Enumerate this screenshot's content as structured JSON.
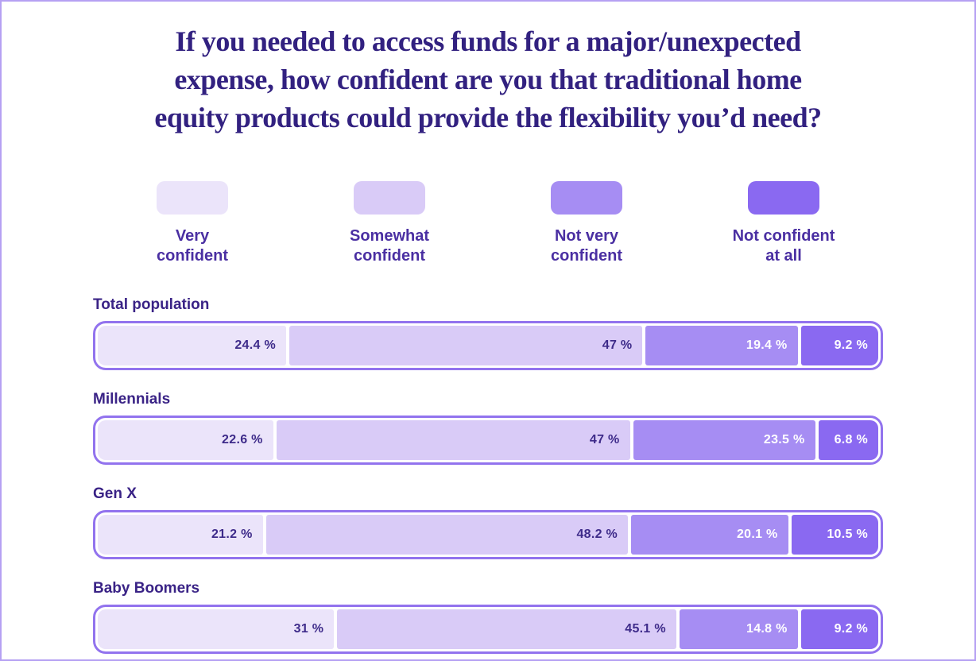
{
  "page": {
    "background": "#ffffff",
    "border_color": "#b6a1f3"
  },
  "title_lines": [
    "If you needed to access funds for a major/unexpected",
    "expense, how confident are you that traditional home",
    "equity products could provide the flexibility you’d need?"
  ],
  "legend": {
    "items": [
      {
        "label": "Very\nconfident",
        "color": "#ebe4fa",
        "dotted": true
      },
      {
        "label": "Somewhat\nconfident",
        "color": "#d9cbf7",
        "dotted": false
      },
      {
        "label": "Not very\nconfident",
        "color": "#a68df3",
        "dotted": false
      },
      {
        "label": "Not confident\nat all",
        "color": "#8a69f1",
        "dotted": false
      }
    ]
  },
  "chart_data": {
    "type": "bar",
    "orientation": "horizontal",
    "stacked": true,
    "title": "If you needed to access funds for a major/unexpected expense, how confident are you that traditional home equity products could provide the flexibility you’d need?",
    "categories": [
      "Total population",
      "Millennials",
      "Gen X",
      "Baby Boomers"
    ],
    "series": [
      {
        "name": "Very confident",
        "color": "#ebe4fa",
        "text_color": "#3e2b8a",
        "dotted": true,
        "values": [
          24.4,
          22.6,
          21.2,
          31
        ]
      },
      {
        "name": "Somewhat confident",
        "color": "#d9cbf7",
        "text_color": "#3e2b8a",
        "dotted": false,
        "values": [
          47,
          47,
          48.2,
          45.1
        ]
      },
      {
        "name": "Not very confident",
        "color": "#a68df3",
        "text_color": "#ffffff",
        "dotted": false,
        "values": [
          19.4,
          23.5,
          20.1,
          14.8
        ]
      },
      {
        "name": "Not confident at all",
        "color": "#8a69f1",
        "text_color": "#ffffff",
        "dotted": false,
        "values": [
          9.2,
          6.8,
          10.5,
          9.2
        ]
      }
    ],
    "value_suffix": " %",
    "xlim": [
      0,
      100
    ],
    "grid": false,
    "legend_position": "top"
  },
  "styles": {
    "title_color": "#322180",
    "legend_label_color": "#4a2fa2",
    "row_label_color": "#3a2386",
    "bar_border_color": "#9273ee"
  }
}
